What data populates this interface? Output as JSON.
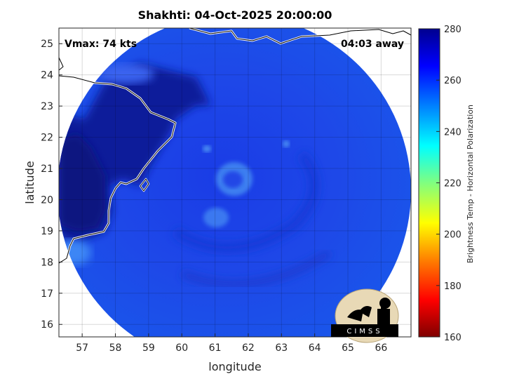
{
  "title": "Shakhti: 04-Oct-2025 20:00:00",
  "overlay": {
    "vmax": "Vmax: 74 kts",
    "time_away": "04:03 away"
  },
  "map": {
    "xlabel": "longitude",
    "ylabel": "latitude",
    "xlim": [
      56.3,
      66.9
    ],
    "ylim": [
      15.6,
      25.5
    ],
    "x_ticks": [
      "57",
      "58",
      "59",
      "60",
      "61",
      "62",
      "63",
      "64",
      "65",
      "66"
    ],
    "y_ticks": [
      "16",
      "17",
      "18",
      "19",
      "20",
      "21",
      "22",
      "23",
      "24",
      "25"
    ],
    "grid": "on",
    "storm_center": {
      "lon": 61.2,
      "lat": 20.6
    }
  },
  "colorbar": {
    "label": "Brightness Temp - Horizontal Polarization",
    "ticks": [
      "160",
      "180",
      "200",
      "220",
      "240",
      "260",
      "280"
    ],
    "range": [
      160,
      280
    ],
    "colors": [
      "#7f0000",
      "#ff0000",
      "#ff8000",
      "#ffff00",
      "#80ff80",
      "#00ffff",
      "#0080ff",
      "#0000ff",
      "#00008f"
    ]
  },
  "logo": {
    "text": "CIMSS"
  }
}
